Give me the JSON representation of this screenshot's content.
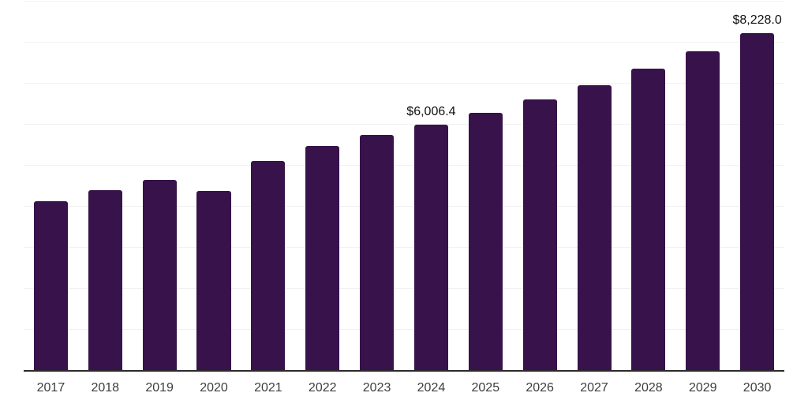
{
  "chart_data": {
    "type": "bar",
    "title": "",
    "xlabel": "",
    "ylabel": "",
    "categories": [
      "2017",
      "2018",
      "2019",
      "2020",
      "2021",
      "2022",
      "2023",
      "2024",
      "2025",
      "2026",
      "2027",
      "2028",
      "2029",
      "2030"
    ],
    "values": [
      4135,
      4405,
      4655,
      4385,
      5115,
      5480,
      5750,
      6006.4,
      6290,
      6615,
      6960,
      7365,
      7790,
      8228.0
    ],
    "data_labels": {
      "2024": "$6,006.4",
      "2030": "$8,228.0"
    },
    "ylim": [
      0,
      9000
    ],
    "gridline_step": 1000,
    "grid": "horizontal",
    "legend": "none",
    "y_axis_tick_labels_visible": false,
    "bar_color": "#38124a",
    "gridline_color": "#f1f1f1",
    "axis_line_color": "#2b2b2b",
    "tick_label_color": "#3d3d3d",
    "data_label_color": "#111111",
    "background_color": "#ffffff"
  }
}
